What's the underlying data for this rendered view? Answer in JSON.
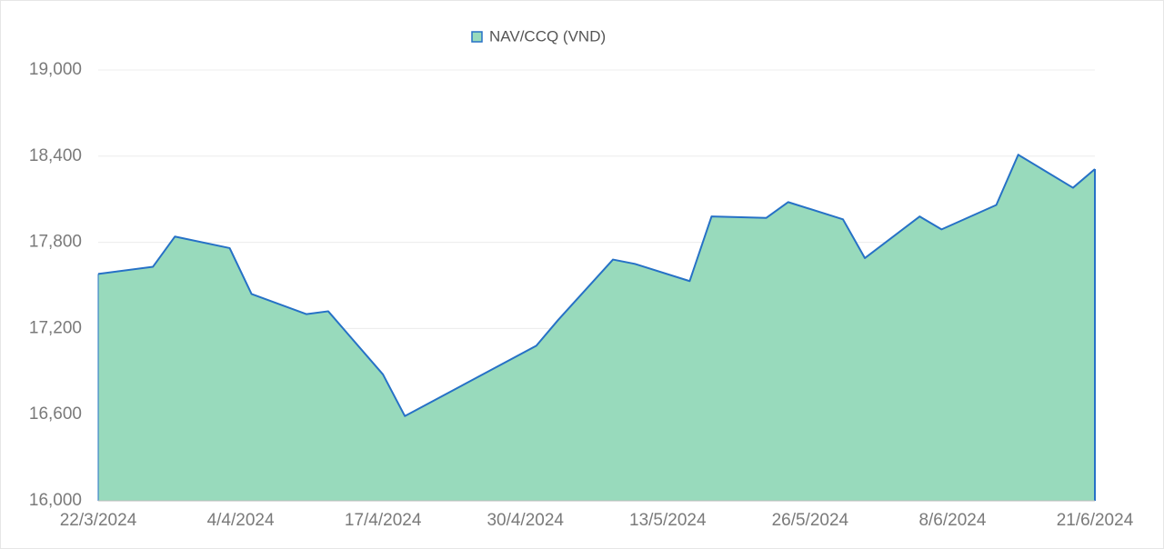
{
  "chart_data": {
    "type": "area",
    "legend": "top",
    "x": [
      "22/3/2024",
      "27/3/2024",
      "29/3/2024",
      "3/4/2024",
      "5/4/2024",
      "10/4/2024",
      "12/4/2024",
      "17/4/2024",
      "19/4/2024",
      "1/5/2024",
      "3/5/2024",
      "8/5/2024",
      "10/5/2024",
      "15/5/2024",
      "17/5/2024",
      "22/5/2024",
      "24/5/2024",
      "29/5/2024",
      "31/5/2024",
      "5/6/2024",
      "7/6/2024",
      "12/6/2024",
      "14/6/2024",
      "19/6/2024",
      "21/6/2024"
    ],
    "series": [
      {
        "name": "NAV/CCQ (VND)",
        "color": "#2671c6",
        "fill_color": "#98dabc",
        "values": [
          17580,
          17630,
          17840,
          17760,
          17440,
          17300,
          17320,
          16880,
          16590,
          17080,
          17260,
          17680,
          17650,
          17530,
          17980,
          17970,
          18080,
          17960,
          17690,
          17980,
          17890,
          18060,
          18410,
          18180,
          18310
        ]
      }
    ],
    "xlim": [
      "22/3/2024",
      "21/6/2024"
    ],
    "xticks": [
      "22/3/2024",
      "4/4/2024",
      "17/4/2024",
      "30/4/2024",
      "13/5/2024",
      "26/5/2024",
      "8/6/2024",
      "21/6/2024"
    ],
    "ylim": [
      16000,
      19000
    ],
    "yticks": [
      {
        "value": 16000,
        "label": "16,000"
      },
      {
        "value": 16600,
        "label": "16,600"
      },
      {
        "value": 17200,
        "label": "17,200"
      },
      {
        "value": 17800,
        "label": "17,800"
      },
      {
        "value": 18400,
        "label": "18,400"
      },
      {
        "value": 19000,
        "label": "19,000"
      }
    ],
    "grid": true
  }
}
